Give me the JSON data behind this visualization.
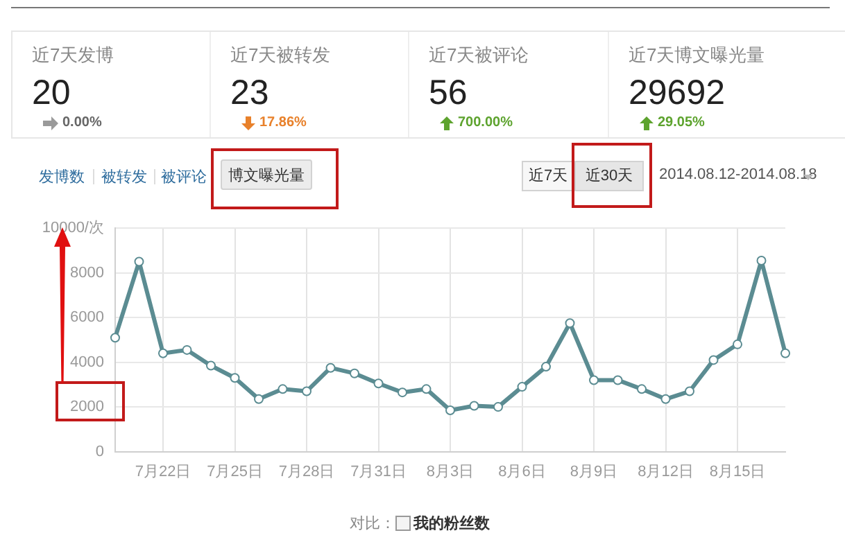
{
  "chart_data": [
    {
      "type": "other",
      "annotations": [
        "近7天发博",
        "20",
        "0.00%",
        "近7天被转发",
        "23",
        "17.86%",
        "近7天被评论",
        "56",
        "700.00%",
        "近7天博文曝光量",
        "29692",
        "29.05%"
      ]
    },
    {
      "type": "line",
      "categories": [
        null,
        null,
        "7月22日",
        null,
        null,
        "7月25日",
        null,
        null,
        "7月28日",
        null,
        null,
        "7月31日",
        null,
        null,
        "8月3日",
        null,
        null,
        "8月6日",
        null,
        null,
        "8月9日",
        null,
        null,
        "8月12日",
        null,
        null,
        "8月15日",
        null,
        null
      ],
      "series": [
        {
          "color": "#5b8c92",
          "values": [
            5100,
            8500,
            4400,
            4550,
            3850,
            3300,
            2350,
            2800,
            2700,
            3750,
            3500,
            3050,
            2650,
            2800,
            1850,
            2050,
            2000,
            2900,
            3800,
            5750,
            3200,
            3200,
            2800,
            2350,
            2700,
            4100,
            4800,
            8550,
            4400
          ]
        }
      ],
      "ylim": [
        0,
        10000
      ],
      "yticks": [
        0,
        2000,
        4000,
        6000,
        8000,
        {
          "value": 10000,
          "label": "10000/次"
        }
      ],
      "grid": true,
      "legend": false,
      "marker": "circle",
      "line_style": "solid",
      "annotations": [
        "发博数",
        "被转发",
        "被评论",
        "博文曝光量",
        "近7天",
        "近30天",
        "2014.08.12-2014.08.18",
        "对比：",
        "我的粉丝数"
      ]
    }
  ]
}
